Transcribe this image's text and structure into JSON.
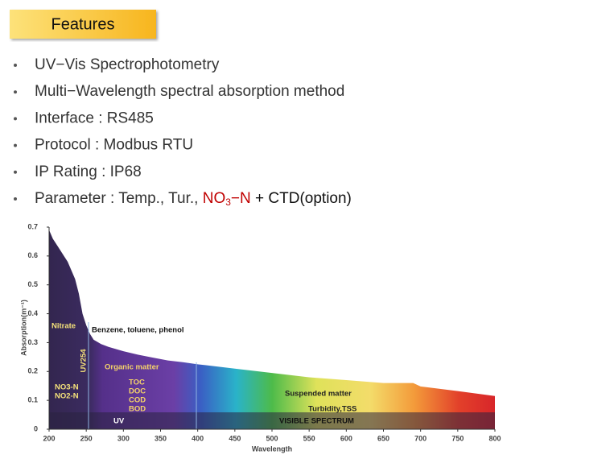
{
  "header": {
    "title": "Features"
  },
  "bullets": [
    "UV−Vis Spectrophotometry",
    "Multi−Wavelength spectral absorption method",
    "Interface : RS485",
    "Protocol : Modbus RTU",
    "IP Rating : IP68"
  ],
  "parameter": {
    "label": "Parameter : Temp., Tur., ",
    "highlight": "NO",
    "subscript": "3",
    "highlight_end": "−N",
    "rest": " + CTD(option)"
  },
  "chart_data": {
    "type": "area",
    "x": [
      200,
      205,
      210,
      215,
      220,
      225,
      230,
      235,
      240,
      245,
      250,
      255,
      260,
      270,
      280,
      300,
      320,
      340,
      360,
      380,
      400,
      450,
      500,
      550,
      600,
      650,
      690,
      700,
      750,
      800
    ],
    "values": [
      0.69,
      0.66,
      0.64,
      0.62,
      0.6,
      0.58,
      0.55,
      0.52,
      0.47,
      0.4,
      0.36,
      0.33,
      0.31,
      0.295,
      0.285,
      0.27,
      0.258,
      0.248,
      0.238,
      0.232,
      0.225,
      0.21,
      0.195,
      0.18,
      0.17,
      0.16,
      0.16,
      0.148,
      0.132,
      0.115
    ],
    "xlim": [
      200,
      800
    ],
    "ylim": [
      0,
      0.7
    ],
    "xticks": [
      200,
      250,
      300,
      350,
      400,
      450,
      500,
      550,
      600,
      650,
      700,
      750,
      800
    ],
    "yticks": [
      0,
      0.1,
      0.2,
      0.3,
      0.4,
      0.5,
      0.6,
      0.7
    ],
    "x_label": "Wavelength",
    "y_label": "Absorption(m⁻¹)",
    "annotations": [
      "Nitrate",
      "Benzene, toluene, phenol",
      "UV254",
      "Organic matter",
      "TOC",
      "DOC",
      "COD",
      "BOD",
      "NO3-N",
      "NO2-N",
      "Suspended matter",
      "Turbidity,TSS",
      "UV",
      "VISIBLE SPECTRUM"
    ]
  }
}
